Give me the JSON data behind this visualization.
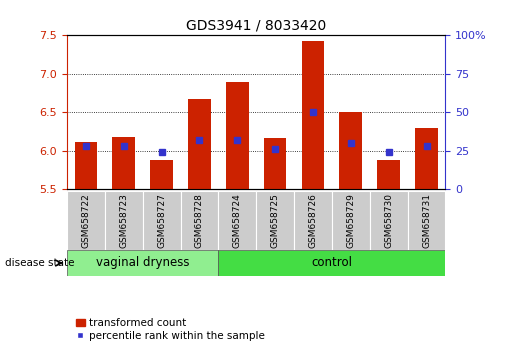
{
  "title": "GDS3941 / 8033420",
  "samples": [
    "GSM658722",
    "GSM658723",
    "GSM658727",
    "GSM658728",
    "GSM658724",
    "GSM658725",
    "GSM658726",
    "GSM658729",
    "GSM658730",
    "GSM658731"
  ],
  "transformed_counts": [
    6.12,
    6.18,
    5.88,
    6.67,
    6.9,
    6.17,
    7.43,
    6.5,
    5.88,
    6.3
  ],
  "percentile_ranks": [
    28,
    28,
    24,
    32,
    32,
    26,
    50,
    30,
    24,
    28
  ],
  "groups": [
    "vaginal dryness",
    "vaginal dryness",
    "vaginal dryness",
    "vaginal dryness",
    "control",
    "control",
    "control",
    "control",
    "control",
    "control"
  ],
  "bar_color": "#CC2200",
  "percentile_color": "#3333CC",
  "ylim": [
    5.5,
    7.5
  ],
  "yticks": [
    5.5,
    6.0,
    6.5,
    7.0,
    7.5
  ],
  "right_yticks": [
    0,
    25,
    50,
    75,
    100
  ],
  "right_ylabels": [
    "0",
    "25",
    "50",
    "75",
    "100%"
  ],
  "ylabel_left_color": "#CC2200",
  "ylabel_right_color": "#3333CC",
  "baseline": 5.5,
  "bar_width": 0.6,
  "legend_labels": [
    "transformed count",
    "percentile rank within the sample"
  ],
  "disease_state_label": "disease state",
  "group_label_vaginal": "vaginal dryness",
  "group_label_control": "control",
  "n_vaginal": 4,
  "n_control": 6,
  "grid_lines": [
    6.0,
    6.5,
    7.0
  ],
  "vaginal_color": "#90EE90",
  "control_color": "#44DD44"
}
